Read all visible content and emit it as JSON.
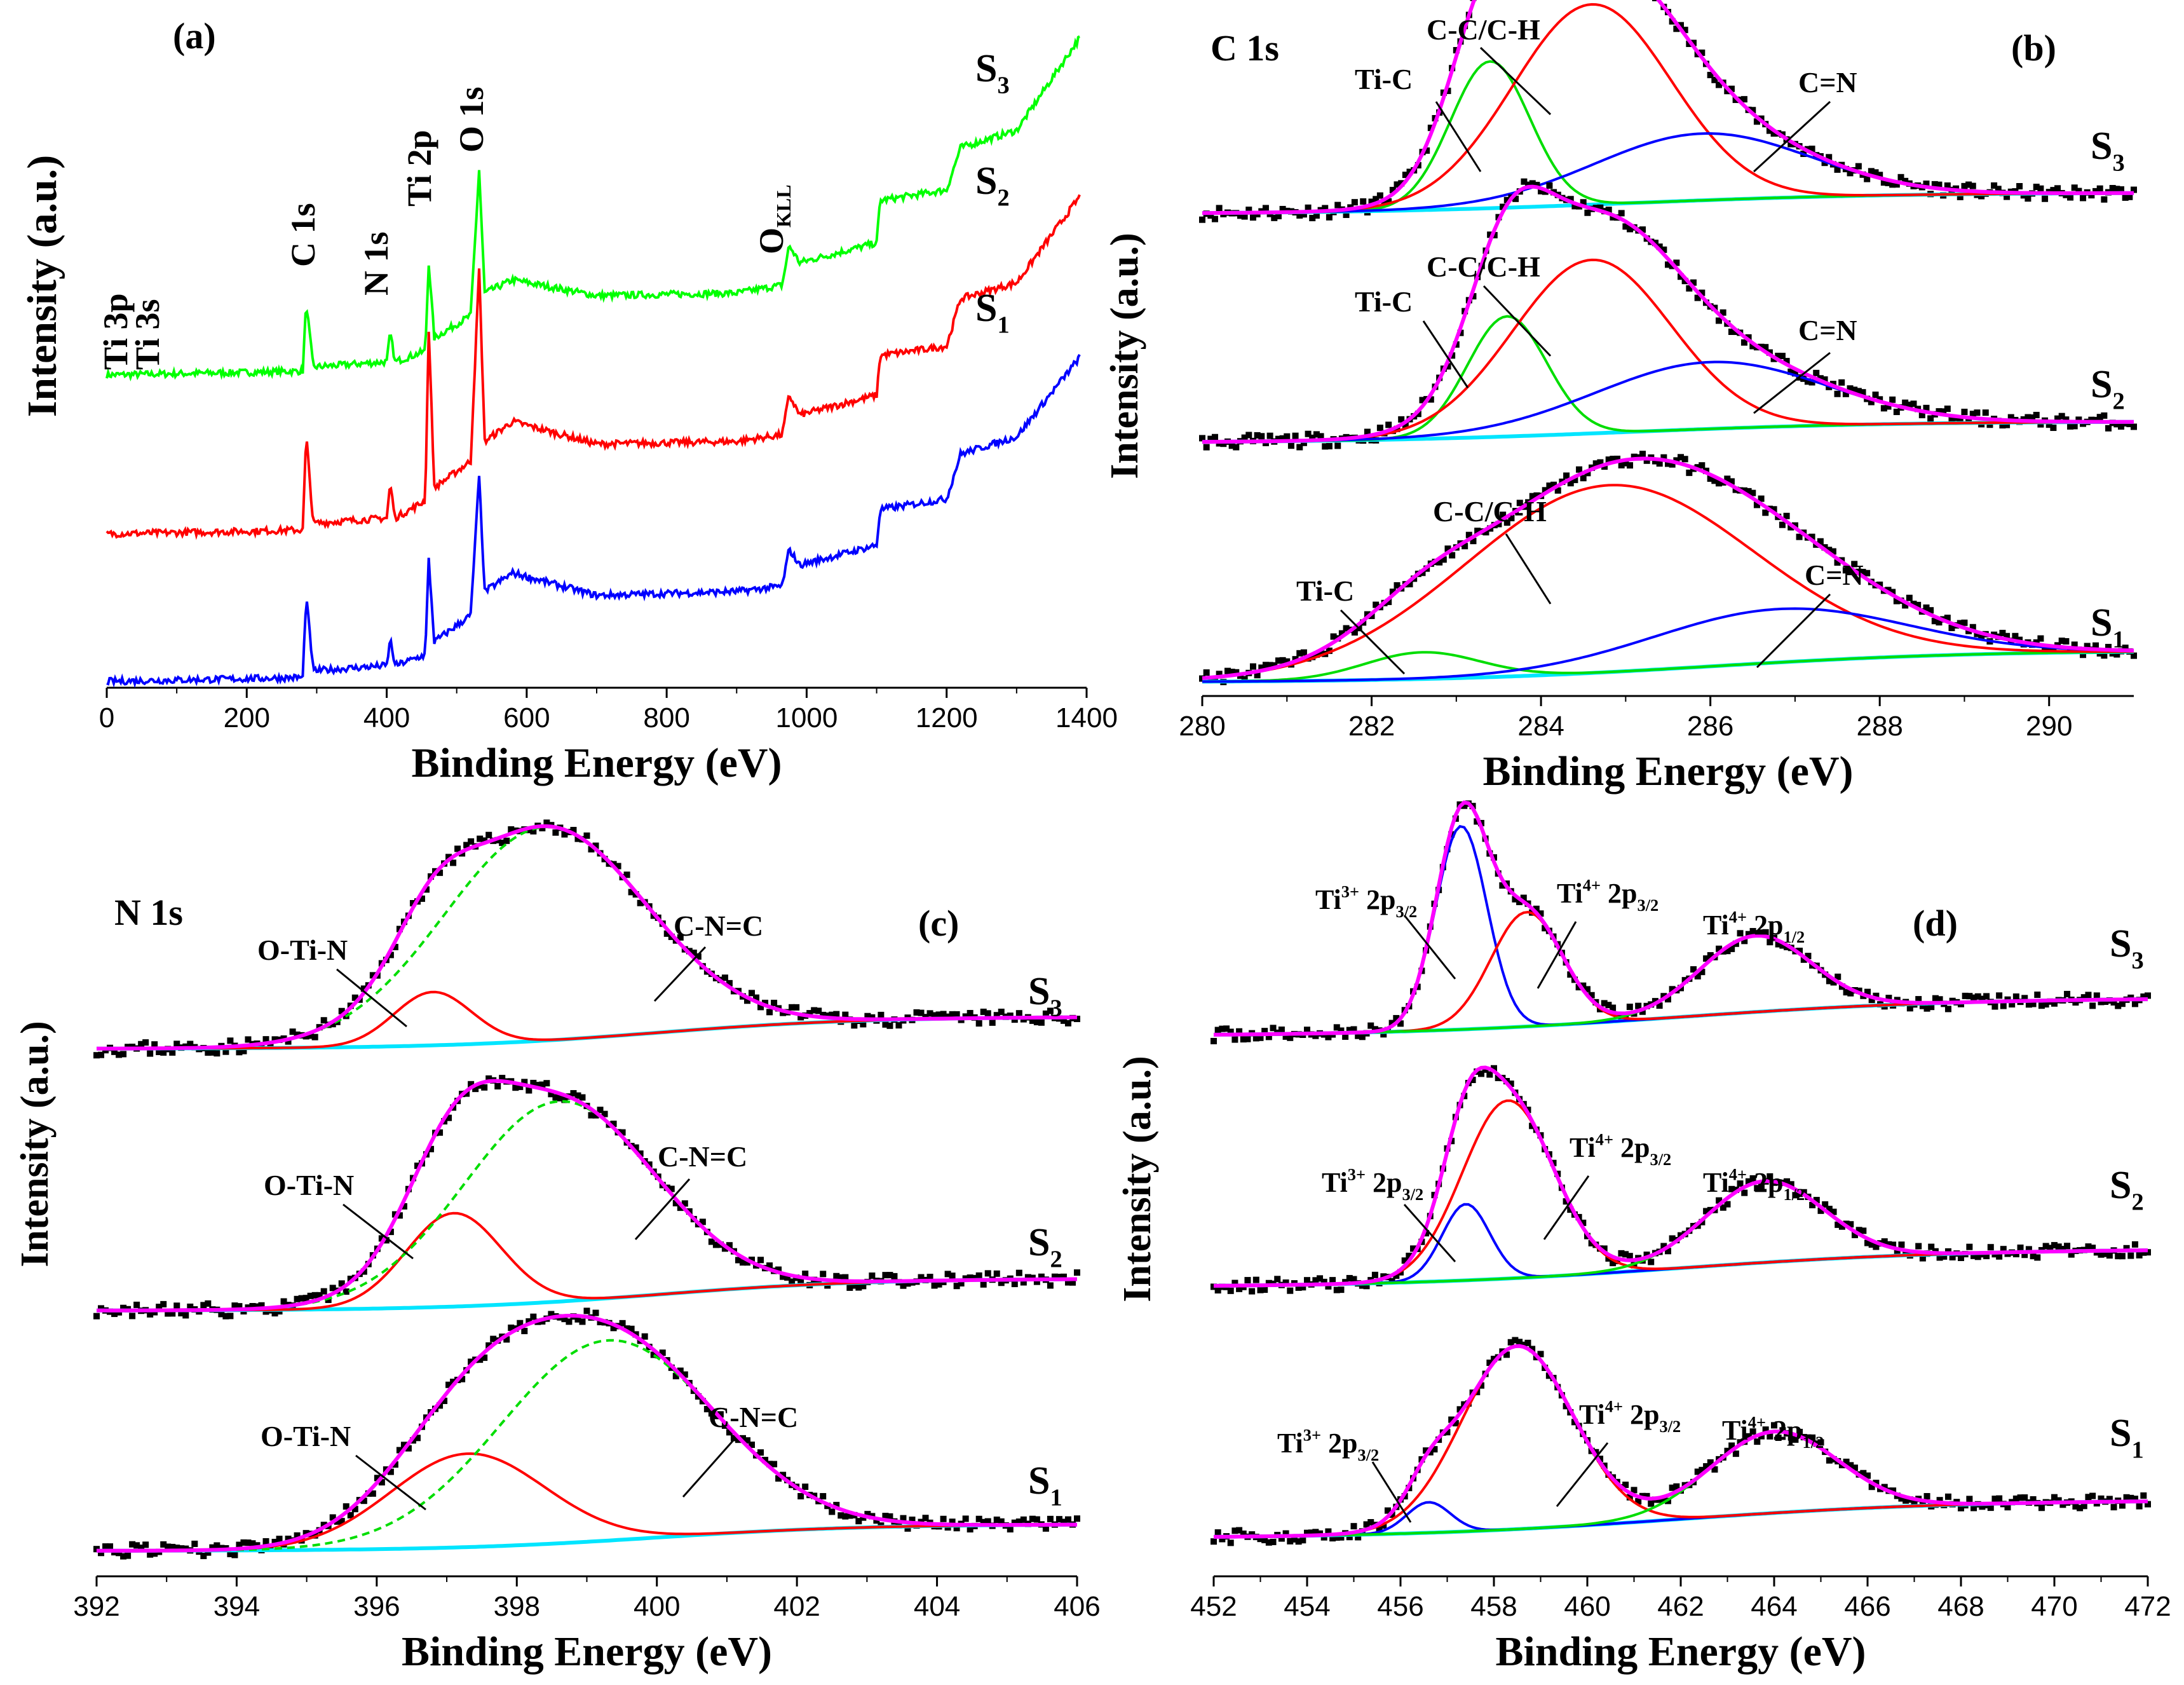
{
  "chart_data": [
    {
      "panel": "(a)",
      "type": "line",
      "title": "",
      "xlabel": "Binding Energy (eV)",
      "ylabel": "Intensity (a.u.)",
      "xlim": [
        0,
        1400
      ],
      "xticks": [
        0,
        200,
        400,
        600,
        800,
        1000,
        1200,
        1400
      ],
      "peak_labels": [
        "Ti 3p",
        "Ti 3s",
        "C 1s",
        "N 1s",
        "Ti 2p",
        "O 1s",
        "O",
        "KLL"
      ],
      "series": [
        {
          "name": "S3",
          "sub": "3",
          "color": "#00ff00",
          "offset": 2,
          "points": [
            [
              0,
              0
            ],
            [
              200,
              0.02
            ],
            [
              280,
              0.03
            ],
            [
              285,
              0.55
            ],
            [
              295,
              0.06
            ],
            [
              400,
              0.1
            ],
            [
              405,
              0.32
            ],
            [
              412,
              0.1
            ],
            [
              455,
              0.18
            ],
            [
              460,
              0.85
            ],
            [
              468,
              0.28
            ],
            [
              520,
              0.45
            ],
            [
              532,
              1.55
            ],
            [
              540,
              0.62
            ],
            [
              580,
              0.72
            ],
            [
              700,
              0.6
            ],
            [
              900,
              0.62
            ],
            [
              965,
              0.68
            ],
            [
              975,
              0.98
            ],
            [
              990,
              0.85
            ],
            [
              1100,
              1.0
            ],
            [
              1105,
              1.32
            ],
            [
              1200,
              1.4
            ],
            [
              1220,
              1.72
            ],
            [
              1300,
              1.85
            ],
            [
              1390,
              2.55
            ]
          ]
        },
        {
          "name": "S2",
          "sub": "2",
          "color": "#ff0000",
          "offset": 1,
          "points": [
            [
              0,
              0
            ],
            [
              200,
              0.02
            ],
            [
              280,
              0.03
            ],
            [
              285,
              0.75
            ],
            [
              295,
              0.08
            ],
            [
              400,
              0.12
            ],
            [
              405,
              0.38
            ],
            [
              412,
              0.12
            ],
            [
              455,
              0.25
            ],
            [
              460,
              1.55
            ],
            [
              468,
              0.35
            ],
            [
              520,
              0.55
            ],
            [
              532,
              2.0
            ],
            [
              540,
              0.7
            ],
            [
              580,
              0.85
            ],
            [
              700,
              0.68
            ],
            [
              900,
              0.7
            ],
            [
              965,
              0.75
            ],
            [
              975,
              1.05
            ],
            [
              990,
              0.9
            ],
            [
              1100,
              1.05
            ],
            [
              1105,
              1.35
            ],
            [
              1200,
              1.42
            ],
            [
              1220,
              1.78
            ],
            [
              1300,
              1.9
            ],
            [
              1390,
              2.55
            ]
          ]
        },
        {
          "name": "S1",
          "sub": "1",
          "color": "#0000ff",
          "offset": 0,
          "points": [
            [
              0,
              0
            ],
            [
              200,
              0.02
            ],
            [
              280,
              0.03
            ],
            [
              285,
              0.65
            ],
            [
              295,
              0.08
            ],
            [
              400,
              0.12
            ],
            [
              405,
              0.32
            ],
            [
              412,
              0.12
            ],
            [
              455,
              0.2
            ],
            [
              460,
              0.92
            ],
            [
              468,
              0.3
            ],
            [
              520,
              0.5
            ],
            [
              532,
              1.55
            ],
            [
              540,
              0.68
            ],
            [
              580,
              0.82
            ],
            [
              700,
              0.65
            ],
            [
              900,
              0.68
            ],
            [
              965,
              0.72
            ],
            [
              975,
              1.0
            ],
            [
              990,
              0.88
            ],
            [
              1100,
              1.03
            ],
            [
              1105,
              1.3
            ],
            [
              1200,
              1.38
            ],
            [
              1220,
              1.72
            ],
            [
              1300,
              1.85
            ],
            [
              1390,
              2.45
            ]
          ]
        }
      ]
    },
    {
      "panel": "(b)",
      "type": "line",
      "title": "C 1s",
      "xlabel": "Binding Energy (eV)",
      "ylabel": "Intensity (a.u.)",
      "xlim": [
        280,
        291
      ],
      "xticks": [
        280,
        282,
        284,
        286,
        288,
        290
      ],
      "peak_labels": [
        "Ti-C",
        "C-C/C-H",
        "C=N"
      ],
      "samples": [
        {
          "name": "S3",
          "sub": "3",
          "baseline": [
            0.02,
            0.1
          ],
          "components": [
            {
              "name": "Ti-C",
              "center": 283.4,
              "fwhm": 1.1,
              "height": 0.55,
              "color": "#00dd00"
            },
            {
              "name": "C-C/C-H",
              "center": 284.6,
              "fwhm": 2.2,
              "height": 0.75,
              "color": "#ff0000"
            },
            {
              "name": "C=N",
              "center": 285.9,
              "fwhm": 3.0,
              "height": 0.25,
              "color": "#0000ff"
            }
          ]
        },
        {
          "name": "S2",
          "sub": "2",
          "baseline": [
            0.02,
            0.1
          ],
          "components": [
            {
              "name": "Ti-C",
              "center": 283.6,
              "fwhm": 1.1,
              "height": 0.45,
              "color": "#00dd00"
            },
            {
              "name": "C-C/C-H",
              "center": 284.6,
              "fwhm": 2.2,
              "height": 0.65,
              "color": "#ff0000"
            },
            {
              "name": "C=N",
              "center": 286.0,
              "fwhm": 3.2,
              "height": 0.25,
              "color": "#0000ff"
            }
          ]
        },
        {
          "name": "S1",
          "sub": "1",
          "baseline": [
            0.02,
            0.14
          ],
          "components": [
            {
              "name": "Ti-C",
              "center": 282.6,
              "fwhm": 1.6,
              "height": 0.1,
              "color": "#00dd00"
            },
            {
              "name": "C-C/C-H",
              "center": 284.8,
              "fwhm": 4.0,
              "height": 0.7,
              "color": "#ff0000"
            },
            {
              "name": "C=N",
              "center": 286.8,
              "fwhm": 3.5,
              "height": 0.2,
              "color": "#0000ff"
            }
          ]
        }
      ]
    },
    {
      "panel": "(c)",
      "type": "line",
      "title": "N 1s",
      "xlabel": "Binding Energy (eV)",
      "ylabel": "Intensity (a.u.)",
      "xlim": [
        392,
        406
      ],
      "xticks": [
        392,
        394,
        396,
        398,
        400,
        402,
        404,
        406
      ],
      "peak_labels": [
        "O-Ti-N",
        "C-N=C"
      ],
      "samples": [
        {
          "name": "S3",
          "sub": "3",
          "baseline": [
            0.0,
            0.12
          ],
          "components": [
            {
              "name": "O-Ti-N",
              "center": 396.8,
              "fwhm": 1.3,
              "height": 0.2,
              "color": "#ff0000"
            },
            {
              "name": "C-N=C",
              "center": 398.4,
              "fwhm": 3.4,
              "height": 0.8,
              "color": "#00dd00",
              "dashed": true
            }
          ]
        },
        {
          "name": "S2",
          "sub": "2",
          "baseline": [
            0.0,
            0.12
          ],
          "components": [
            {
              "name": "O-Ti-N",
              "center": 397.1,
              "fwhm": 1.6,
              "height": 0.35,
              "color": "#ff0000"
            },
            {
              "name": "C-N=C",
              "center": 398.6,
              "fwhm": 3.2,
              "height": 0.75,
              "color": "#00dd00",
              "dashed": true
            }
          ]
        },
        {
          "name": "S1",
          "sub": "1",
          "baseline": [
            0.0,
            0.1
          ],
          "components": [
            {
              "name": "O-Ti-N",
              "center": 397.3,
              "fwhm": 2.6,
              "height": 0.35,
              "color": "#ff0000"
            },
            {
              "name": "C-N=C",
              "center": 399.3,
              "fwhm": 3.6,
              "height": 0.75,
              "color": "#00dd00",
              "dashed": true
            }
          ]
        }
      ]
    },
    {
      "panel": "(d)",
      "type": "line",
      "title": "",
      "xlabel": "Binding Energy (eV)",
      "ylabel": "Intensity (a.u.)",
      "xlim": [
        452,
        472
      ],
      "xticks": [
        452,
        454,
        456,
        458,
        460,
        462,
        464,
        466,
        468,
        470,
        472
      ],
      "peak_labels": [
        {
          "base": "Ti",
          "sup": "3+",
          "mid": " 2p",
          "sub": "3/2"
        },
        {
          "base": "Ti",
          "sup": "4+",
          "mid": " 2p",
          "sub": "3/2"
        },
        {
          "base": "Ti",
          "sup": "4+",
          "mid": " 2p",
          "sub": "1/2"
        }
      ],
      "samples": [
        {
          "name": "S3",
          "sub": "3",
          "baseline": [
            0.05,
            0.2
          ],
          "components": [
            {
              "name": "Ti3+ 2p3/2",
              "center": 457.3,
              "fwhm": 1.3,
              "height": 0.8,
              "color": "#0000ff"
            },
            {
              "name": "Ti4+ 2p3/2",
              "center": 458.7,
              "fwhm": 1.8,
              "height": 0.45,
              "color": "#ff0000"
            },
            {
              "name": "Ti4+ 2p1/2",
              "center": 463.6,
              "fwhm": 2.8,
              "height": 0.3,
              "color": "#00dd00"
            }
          ]
        },
        {
          "name": "S2",
          "sub": "2",
          "baseline": [
            0.05,
            0.2
          ],
          "components": [
            {
              "name": "Ti3+ 2p3/2",
              "center": 457.4,
              "fwhm": 1.2,
              "height": 0.3,
              "color": "#0000ff"
            },
            {
              "name": "Ti4+ 2p3/2",
              "center": 458.3,
              "fwhm": 2.3,
              "height": 0.7,
              "color": "#ff0000"
            },
            {
              "name": "Ti4+ 2p1/2",
              "center": 463.8,
              "fwhm": 3.0,
              "height": 0.32,
              "color": "#00dd00"
            }
          ]
        },
        {
          "name": "S1",
          "sub": "1",
          "baseline": [
            0.05,
            0.2
          ],
          "components": [
            {
              "name": "Ti3+ 2p3/2",
              "center": 456.6,
              "fwhm": 1.1,
              "height": 0.12,
              "color": "#0000ff"
            },
            {
              "name": "Ti4+ 2p3/2",
              "center": 458.5,
              "fwhm": 2.8,
              "height": 0.72,
              "color": "#ff0000"
            },
            {
              "name": "Ti4+ 2p1/2",
              "center": 464.0,
              "fwhm": 3.2,
              "height": 0.32,
              "color": "#00dd00"
            }
          ]
        }
      ]
    }
  ],
  "colors": {
    "envelope": "#ff00ff",
    "background": "#00e5ff",
    "raw": "#000000",
    "label_line": "#000000"
  }
}
